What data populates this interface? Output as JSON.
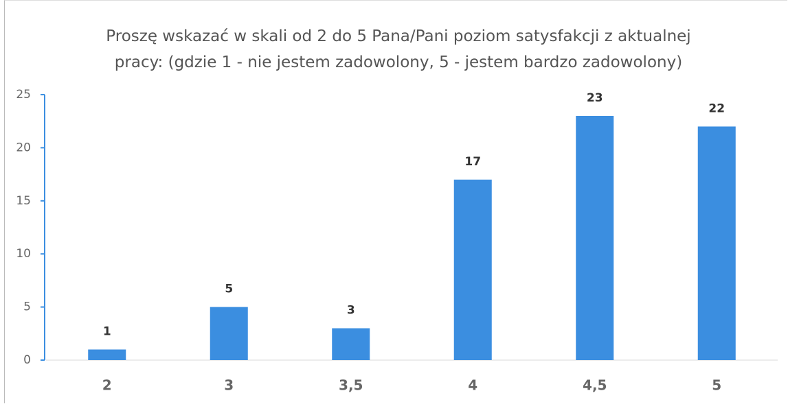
{
  "chart_data": {
    "type": "bar",
    "title": "Proszę wskazać w skali od 2 do 5 Pana/Pani poziom satysfakcji z aktualnej pracy: (gdzie 1 - nie jestem zadowolony, 5 - jestem bardzo zadowolony)",
    "categories": [
      "2",
      "3",
      "3,5",
      "4",
      "4,5",
      "5"
    ],
    "values": [
      1,
      5,
      3,
      17,
      23,
      22
    ],
    "color": "#3b8ee0",
    "ylim": [
      0,
      25
    ],
    "yticks": [
      0,
      5,
      10,
      15,
      20,
      25
    ],
    "grid": false
  }
}
